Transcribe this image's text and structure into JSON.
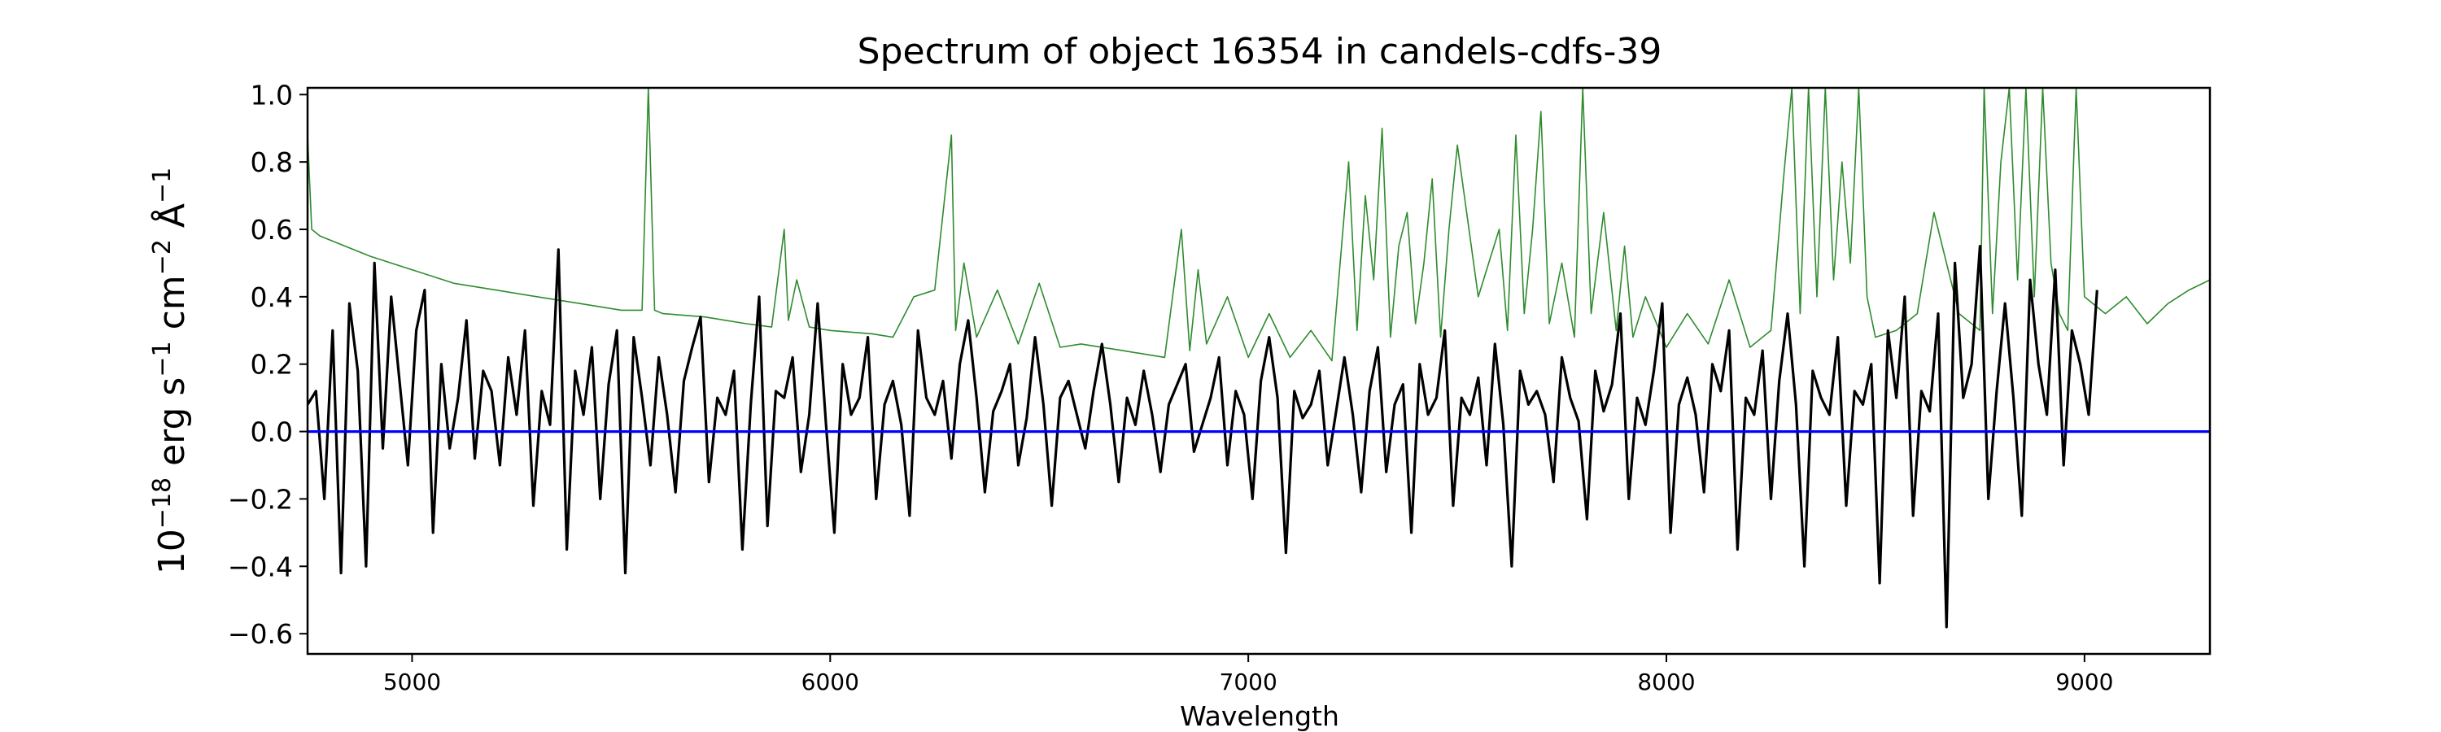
{
  "chart_data": {
    "type": "line",
    "title": "Spectrum of object 16354 in candels-cdfs-39",
    "xlabel": "Wavelength",
    "ylabel_parts": [
      "10",
      "−18",
      " erg s",
      "−1",
      " cm",
      "−2",
      " Å",
      "−1"
    ],
    "xlim": [
      4750,
      9300
    ],
    "ylim": [
      -0.66,
      1.02
    ],
    "xticks": [
      5000,
      6000,
      7000,
      8000,
      9000
    ],
    "xtick_labels": [
      "5000",
      "6000",
      "7000",
      "8000",
      "9000"
    ],
    "yticks": [
      1.0,
      0.8,
      0.6,
      0.4,
      0.2,
      0.0,
      -0.2,
      -0.4,
      -0.6
    ],
    "ytick_labels": [
      "1.0",
      "0.8",
      "0.6",
      "0.4",
      "0.2",
      "0.0",
      "−0.2",
      "−0.4",
      "−0.6"
    ],
    "grid": false,
    "legend": "none",
    "series": [
      {
        "color": "#000000",
        "note": "flux (noisy)",
        "x_start": 4750,
        "x_step": 20,
        "values": [
          0.08,
          0.12,
          -0.2,
          0.3,
          -0.42,
          0.38,
          0.18,
          -0.4,
          0.5,
          -0.05,
          0.4,
          0.15,
          -0.1,
          0.3,
          0.42,
          -0.3,
          0.2,
          -0.05,
          0.1,
          0.33,
          -0.08,
          0.18,
          0.12,
          -0.1,
          0.22,
          0.05,
          0.3,
          -0.22,
          0.12,
          0.02,
          0.54,
          -0.35,
          0.18,
          0.05,
          0.25,
          -0.2,
          0.14,
          0.3,
          -0.42,
          0.28,
          0.1,
          -0.1,
          0.22,
          0.05,
          -0.18,
          0.15,
          0.25,
          0.34,
          -0.15,
          0.1,
          0.05,
          0.18,
          -0.35,
          0.08,
          0.4,
          -0.28,
          0.12,
          0.1,
          0.22,
          -0.12,
          0.05,
          0.38,
          0.02,
          -0.3,
          0.2,
          0.05,
          0.1,
          0.28,
          -0.2,
          0.08,
          0.15,
          0.02,
          -0.25,
          0.3,
          0.1,
          0.05,
          0.15,
          -0.08,
          0.2,
          0.33,
          0.1,
          -0.18,
          0.06,
          0.12,
          0.2,
          -0.1,
          0.04,
          0.28,
          0.08,
          -0.22,
          0.1,
          0.15,
          0.05,
          -0.05,
          0.12,
          0.26,
          0.08,
          -0.15,
          0.1,
          0.02,
          0.18,
          0.05,
          -0.12,
          0.08,
          0.14,
          0.2,
          -0.06,
          0.02,
          0.1,
          0.22,
          -0.1,
          0.12,
          0.05,
          -0.2,
          0.15,
          0.28,
          0.1,
          -0.36,
          0.12,
          0.04,
          0.08,
          0.18,
          -0.1,
          0.06,
          0.22,
          0.05,
          -0.18,
          0.12,
          0.25,
          -0.12,
          0.08,
          0.14,
          -0.3,
          0.2,
          0.05,
          0.1,
          0.3,
          -0.22,
          0.1,
          0.05,
          0.16,
          -0.1,
          0.26,
          0.02,
          -0.4,
          0.18,
          0.08,
          0.12,
          0.05,
          -0.15,
          0.22,
          0.1,
          0.03,
          -0.26,
          0.18,
          0.06,
          0.14,
          0.35,
          -0.2,
          0.1,
          0.02,
          0.18,
          0.38,
          -0.3,
          0.08,
          0.16,
          0.05,
          -0.18,
          0.2,
          0.12,
          0.3,
          -0.35,
          0.1,
          0.05,
          0.24,
          -0.2,
          0.15,
          0.35,
          0.08,
          -0.4,
          0.18,
          0.1,
          0.05,
          0.28,
          -0.22,
          0.12,
          0.08,
          0.2,
          -0.45,
          0.3,
          0.1,
          0.4,
          -0.25,
          0.12,
          0.06,
          0.35,
          -0.58,
          0.5,
          0.1,
          0.2,
          0.55,
          -0.2,
          0.12,
          0.38,
          0.1,
          -0.25,
          0.45,
          0.2,
          0.05,
          0.48,
          -0.1,
          0.3,
          0.2,
          0.05,
          0.42
        ]
      },
      {
        "color": "#2e8b2e",
        "note": "error / noise spectrum",
        "x": [
          4750,
          4760,
          4780,
          4800,
          4900,
          5000,
          5100,
          5200,
          5300,
          5400,
          5500,
          5550,
          5565,
          5580,
          5600,
          5700,
          5800,
          5860,
          5890,
          5900,
          5920,
          5950,
          6000,
          6100,
          6150,
          6200,
          6250,
          6290,
          6300,
          6320,
          6350,
          6400,
          6450,
          6500,
          6550,
          6600,
          6700,
          6800,
          6840,
          6860,
          6880,
          6900,
          6950,
          7000,
          7050,
          7100,
          7150,
          7200,
          7240,
          7260,
          7280,
          7300,
          7320,
          7340,
          7360,
          7380,
          7400,
          7420,
          7440,
          7460,
          7480,
          7500,
          7550,
          7600,
          7620,
          7640,
          7660,
          7680,
          7700,
          7720,
          7750,
          7780,
          7800,
          7820,
          7850,
          7880,
          7900,
          7920,
          7950,
          8000,
          8050,
          8100,
          8150,
          8200,
          8250,
          8280,
          8300,
          8320,
          8340,
          8360,
          8380,
          8400,
          8420,
          8440,
          8460,
          8480,
          8500,
          8550,
          8600,
          8640,
          8660,
          8700,
          8750,
          8760,
          8780,
          8800,
          8820,
          8840,
          8860,
          8880,
          8900,
          8920,
          8940,
          8960,
          8980,
          9000,
          9050,
          9100,
          9150,
          9200,
          9250,
          9300
        ],
        "values": [
          0.88,
          0.6,
          0.58,
          0.57,
          0.52,
          0.48,
          0.44,
          0.42,
          0.4,
          0.38,
          0.36,
          0.36,
          1.05,
          0.36,
          0.35,
          0.34,
          0.32,
          0.31,
          0.6,
          0.33,
          0.45,
          0.31,
          0.3,
          0.29,
          0.28,
          0.4,
          0.42,
          0.88,
          0.3,
          0.5,
          0.28,
          0.42,
          0.26,
          0.44,
          0.25,
          0.26,
          0.24,
          0.22,
          0.6,
          0.24,
          0.48,
          0.26,
          0.4,
          0.22,
          0.35,
          0.22,
          0.3,
          0.21,
          0.8,
          0.3,
          0.7,
          0.45,
          0.9,
          0.28,
          0.55,
          0.65,
          0.32,
          0.5,
          0.75,
          0.28,
          0.6,
          0.85,
          0.4,
          0.6,
          0.3,
          0.88,
          0.35,
          0.6,
          0.95,
          0.32,
          0.5,
          0.28,
          1.05,
          0.35,
          0.65,
          0.3,
          0.55,
          0.28,
          0.4,
          0.25,
          0.35,
          0.26,
          0.45,
          0.25,
          0.3,
          0.75,
          1.05,
          0.35,
          1.05,
          0.4,
          1.05,
          0.45,
          0.8,
          0.5,
          1.05,
          0.4,
          0.28,
          0.3,
          0.35,
          0.65,
          0.55,
          0.35,
          0.3,
          1.05,
          0.35,
          0.8,
          1.05,
          0.45,
          1.05,
          0.4,
          1.05,
          0.5,
          0.35,
          0.3,
          1.05,
          0.4,
          0.35,
          0.4,
          0.32,
          0.38,
          0.42,
          0.45
        ]
      },
      {
        "color": "#0000ff",
        "note": "zero line",
        "x": [
          4750,
          9300
        ],
        "values": [
          0.0,
          0.0
        ]
      }
    ]
  }
}
